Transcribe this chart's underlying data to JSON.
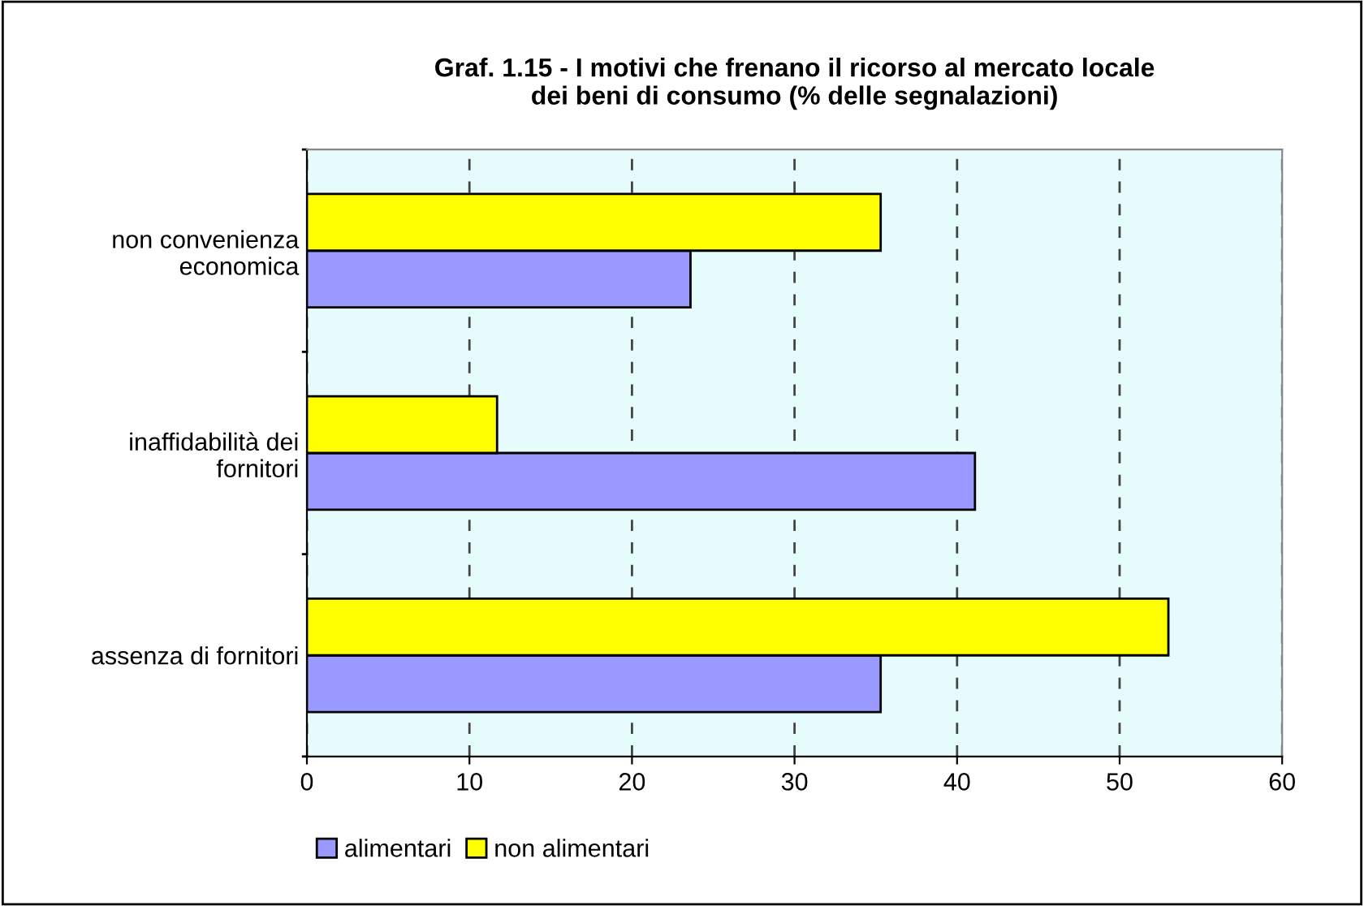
{
  "chart_data": {
    "type": "bar",
    "orientation": "horizontal",
    "title": "Graf. 1.15 - I motivi che frenano il ricorso al mercato locale\ndei beni di consumo (% delle segnalazioni)",
    "categories": [
      "non convenienza\neconomica",
      "inaffidabilità dei\nfornitori",
      "assenza di fornitori"
    ],
    "series": [
      {
        "name": "alimentari",
        "color": "#9999ff",
        "values": [
          23.6,
          41.1,
          35.3
        ]
      },
      {
        "name": "non alimentari",
        "color": "#ffff00",
        "values": [
          35.3,
          11.7,
          53.0
        ]
      }
    ],
    "xlim": [
      0,
      60
    ],
    "xticks": [
      0,
      10,
      20,
      30,
      40,
      50,
      60
    ],
    "grid": "x",
    "legend": "bottom"
  }
}
